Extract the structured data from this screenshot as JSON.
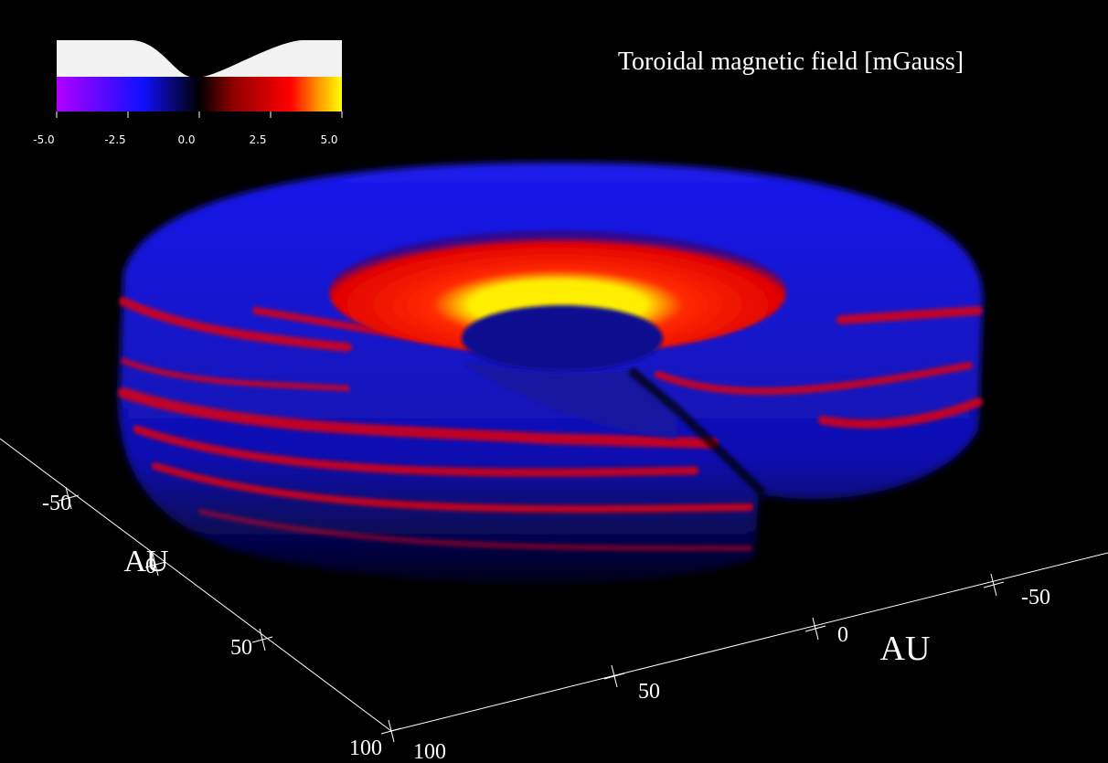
{
  "title": "Toroidal magnetic field [mGauss]",
  "colorbar": {
    "ticks": [
      {
        "value": -5,
        "label": "-5.0"
      },
      {
        "value": -2.5,
        "label": "-2.5"
      },
      {
        "value": 0,
        "label": "0.0"
      },
      {
        "value": 2.5,
        "label": "2.5"
      },
      {
        "value": 5,
        "label": "5.0"
      }
    ]
  },
  "axes": {
    "left": {
      "label": "AU",
      "ticks": [
        -50,
        0,
        50,
        100
      ]
    },
    "bottom": {
      "label": "AU",
      "ticks": [
        100,
        50,
        0,
        -50
      ]
    }
  }
}
